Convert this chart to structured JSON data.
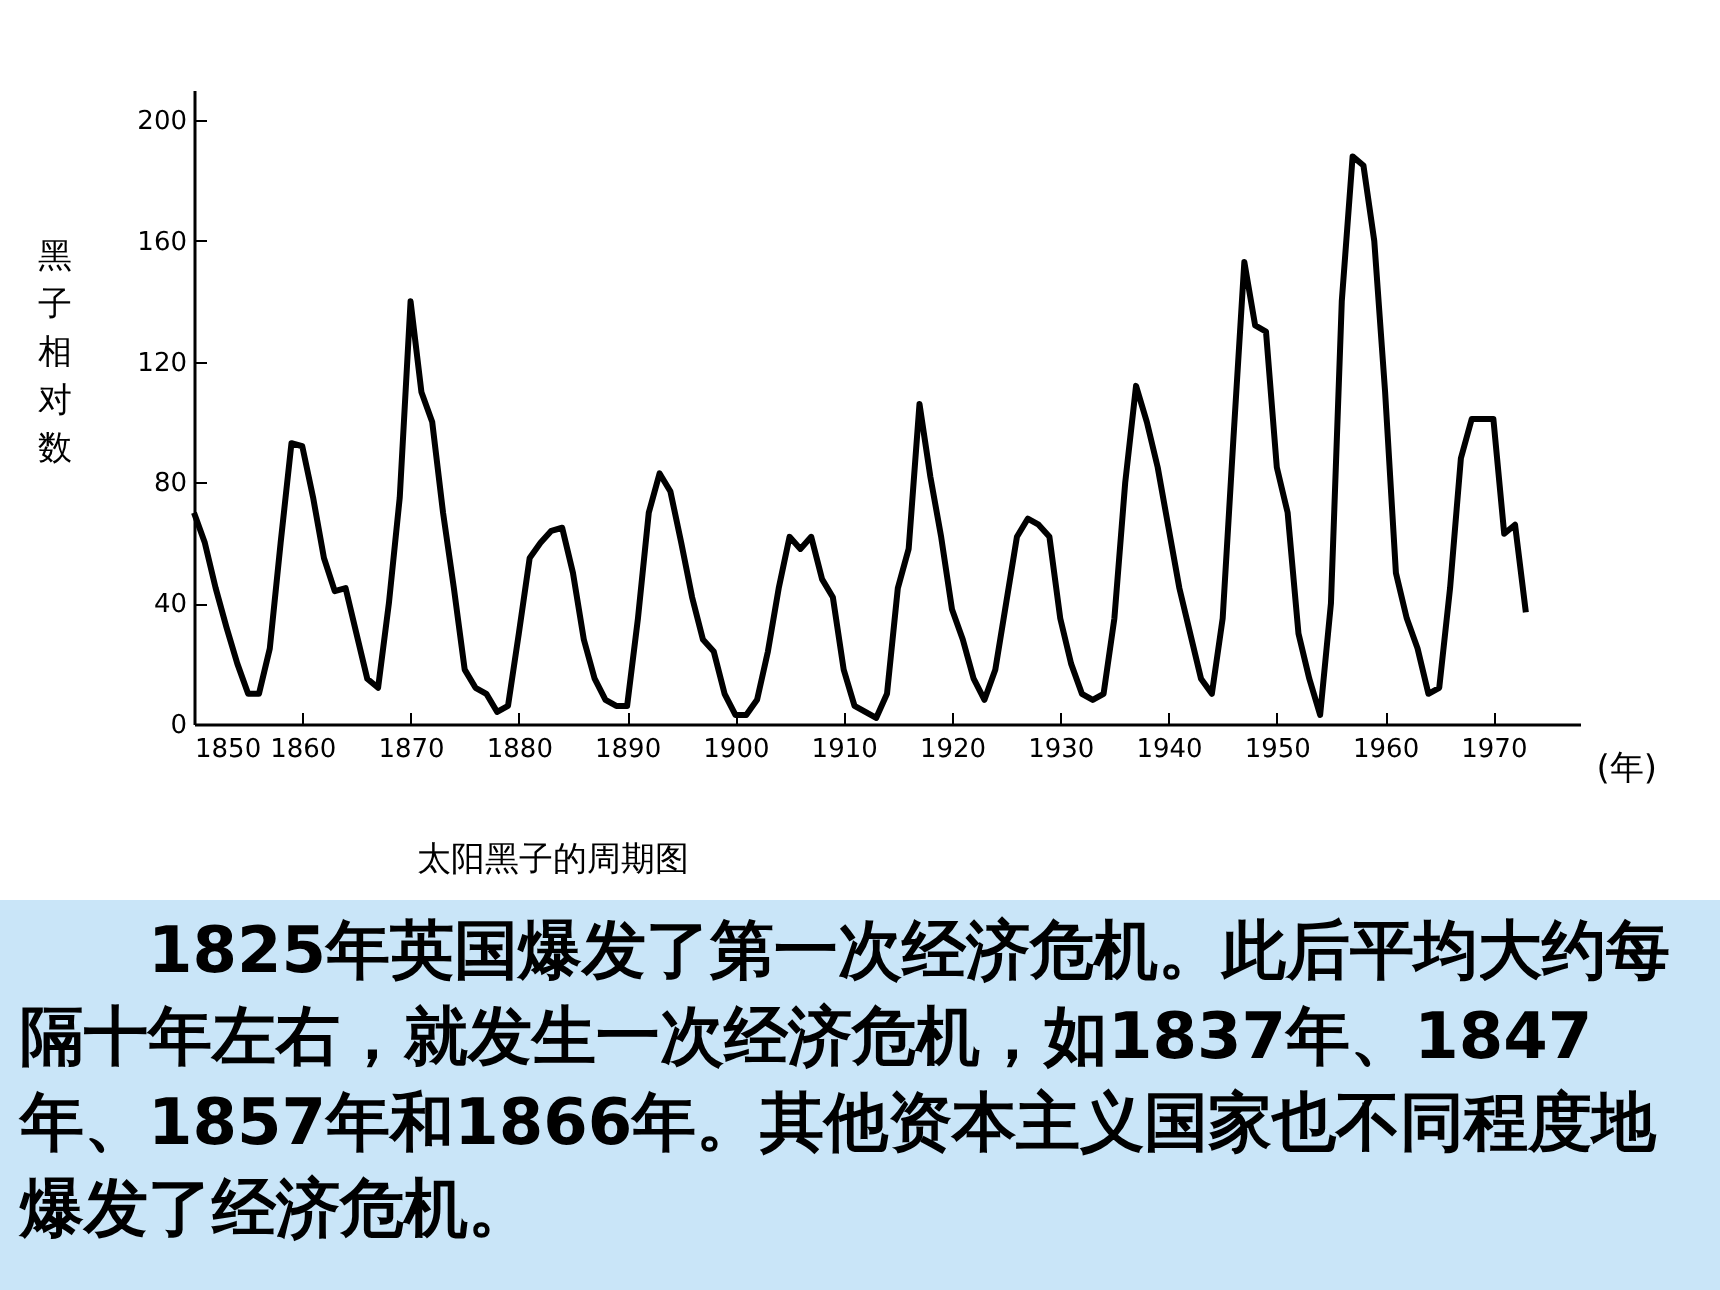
{
  "chart_data": {
    "type": "line",
    "title": "太阳黑子的周期图",
    "xlabel": "(年)",
    "ylabel": "黑子相对数",
    "x": [
      1850,
      1851,
      1852,
      1853,
      1854,
      1855,
      1856,
      1857,
      1858,
      1859,
      1860,
      1861,
      1862,
      1863,
      1864,
      1865,
      1866,
      1867,
      1868,
      1869,
      1870,
      1871,
      1872,
      1873,
      1874,
      1875,
      1876,
      1877,
      1878,
      1879,
      1880,
      1881,
      1882,
      1883,
      1884,
      1885,
      1886,
      1887,
      1888,
      1889,
      1890,
      1891,
      1892,
      1893,
      1894,
      1895,
      1896,
      1897,
      1898,
      1899,
      1900,
      1901,
      1902,
      1903,
      1904,
      1905,
      1906,
      1907,
      1908,
      1909,
      1910,
      1911,
      1912,
      1913,
      1914,
      1915,
      1916,
      1917,
      1918,
      1919,
      1920,
      1921,
      1922,
      1923,
      1924,
      1925,
      1926,
      1927,
      1928,
      1929,
      1930,
      1931,
      1932,
      1933,
      1934,
      1935,
      1936,
      1937,
      1938,
      1939,
      1940,
      1941,
      1942,
      1943,
      1944,
      1945,
      1946,
      1947,
      1948,
      1949,
      1950,
      1951,
      1952,
      1953,
      1954,
      1955,
      1956,
      1957,
      1958,
      1959,
      1960,
      1961,
      1962,
      1963,
      1964,
      1965,
      1966,
      1967,
      1968,
      1969,
      1970,
      1971,
      1972,
      1973
    ],
    "series": [
      {
        "color": "#000000",
        "values": [
          70,
          60,
          45,
          32,
          20,
          10,
          10,
          25,
          60,
          93,
          92,
          75,
          55,
          44,
          45,
          30,
          15,
          12,
          40,
          75,
          140,
          110,
          100,
          70,
          45,
          18,
          12,
          10,
          4,
          6,
          30,
          55,
          60,
          64,
          65,
          50,
          28,
          15,
          8,
          6,
          6,
          35,
          70,
          83,
          77,
          60,
          42,
          28,
          24,
          10,
          3,
          3,
          8,
          24,
          45,
          62,
          58,
          62,
          48,
          42,
          18,
          6,
          4,
          2,
          10,
          45,
          58,
          106,
          82,
          62,
          38,
          28,
          15,
          8,
          18,
          40,
          62,
          68,
          66,
          62,
          35,
          20,
          10,
          8,
          10,
          35,
          80,
          112,
          100,
          85,
          65,
          45,
          30,
          15,
          10,
          35,
          95,
          153,
          132,
          130,
          85,
          70,
          30,
          15,
          3,
          40,
          140,
          188,
          185,
          160,
          110,
          50,
          35,
          25,
          10,
          12,
          45,
          88,
          101,
          101,
          101,
          63,
          66,
          37
        ]
      }
    ],
    "xlim": [
      1850,
      1978
    ],
    "ylim": [
      0,
      210
    ],
    "xticks": [
      1850,
      1860,
      1870,
      1880,
      1890,
      1900,
      1910,
      1920,
      1930,
      1940,
      1950,
      1960,
      1970
    ],
    "yticks": [
      0,
      40,
      80,
      120,
      160,
      200
    ],
    "grid": false,
    "legend": false,
    "marker": "none",
    "line_style": "solid",
    "annotations": [
      "1825年英国爆发了第一次经济危机。此后平均大约每隔十年左右，就发生一次经济危机，如1837年、1847年、1857年和1866年。其他资本主义国家也不同程度地爆发了经济危机。"
    ]
  }
}
